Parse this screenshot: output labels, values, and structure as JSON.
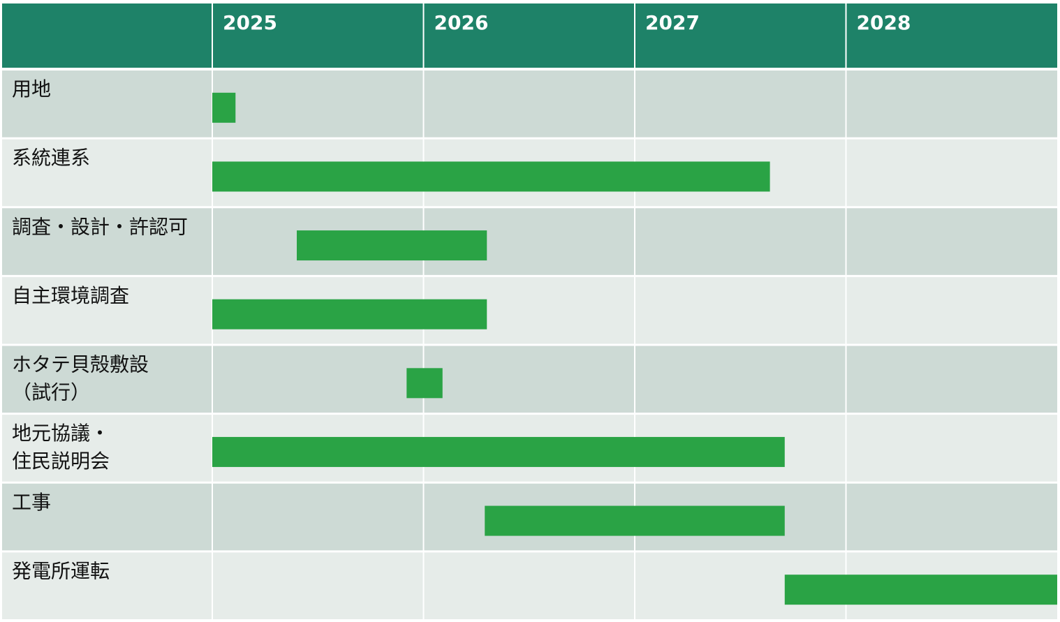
{
  "chart_data": {
    "type": "gantt",
    "categories": [
      [
        "用地"
      ],
      [
        "系統連系"
      ],
      [
        "調査・設計・許認可"
      ],
      [
        "自主環境調査"
      ],
      [
        "ホタテ貝殻敷設",
        "（試行）"
      ],
      [
        "地元協議・",
        "住民説明会"
      ],
      [
        "工事"
      ],
      [
        "発電所運転"
      ]
    ],
    "start": [
      2025.0,
      2025.0,
      2025.4,
      2025.0,
      2025.92,
      2025.0,
      2026.29,
      2027.71
    ],
    "end": [
      2025.11,
      2027.64,
      2026.3,
      2026.3,
      2026.09,
      2027.71,
      2027.71,
      2029.0
    ],
    "color": "#2aa345",
    "xlim": [
      2025,
      2029
    ],
    "xticks": [
      2025,
      2026,
      2027,
      2028
    ]
  }
}
